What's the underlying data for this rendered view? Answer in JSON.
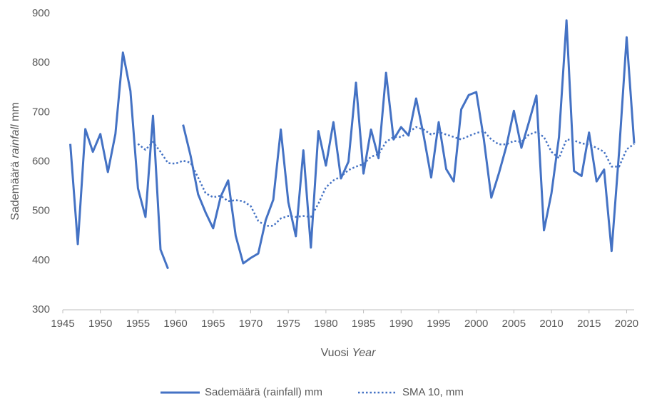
{
  "chart_data": {
    "type": "line",
    "ylabel": [
      "Sademäärä",
      "rainfall",
      "mm"
    ],
    "xlabel": [
      "Vuosi",
      "Year"
    ],
    "x": [
      1946,
      1947,
      1948,
      1949,
      1950,
      1951,
      1952,
      1953,
      1954,
      1955,
      1956,
      1957,
      1958,
      1959,
      1960,
      1961,
      1962,
      1963,
      1964,
      1965,
      1966,
      1967,
      1968,
      1969,
      1970,
      1971,
      1972,
      1973,
      1974,
      1975,
      1976,
      1977,
      1978,
      1979,
      1980,
      1981,
      1982,
      1983,
      1984,
      1985,
      1986,
      1987,
      1988,
      1989,
      1990,
      1991,
      1992,
      1993,
      1994,
      1995,
      1996,
      1997,
      1998,
      1999,
      2000,
      2001,
      2002,
      2003,
      2004,
      2005,
      2006,
      2007,
      2008,
      2009,
      2010,
      2011,
      2012,
      2013,
      2014,
      2015,
      2016,
      2017,
      2018,
      2019,
      2020,
      2021
    ],
    "series": [
      {
        "name": "Sademäärä (rainfall) mm",
        "color": "#4472c4",
        "dash": "solid",
        "values": [
          636,
          433,
          666,
          620,
          656,
          579,
          656,
          821,
          743,
          546,
          488,
          693,
          422,
          383,
          null,
          675,
          612,
          534,
          497,
          465,
          529,
          562,
          450,
          394,
          405,
          414,
          482,
          523,
          665,
          518,
          449,
          623,
          426,
          662,
          592,
          680,
          566,
          600,
          760,
          576,
          665,
          607,
          780,
          645,
          670,
          653,
          728,
          653,
          568,
          680,
          585,
          560,
          706,
          735,
          741,
          646,
          527,
          576,
          631,
          703,
          628,
          680,
          734,
          461,
          536,
          650,
          886,
          581,
          571,
          659,
          560,
          584,
          419,
          621,
          852,
          637
        ]
      },
      {
        "name": "SMA 10, mm",
        "color": "#4472c4",
        "dash": "dotted",
        "values": [
          null,
          null,
          null,
          null,
          null,
          null,
          null,
          null,
          null,
          636,
          624,
          640,
          620,
          597,
          596,
          602,
          598,
          568,
          536,
          528,
          531,
          520,
          522,
          520,
          510,
          480,
          470,
          470,
          485,
          490,
          488,
          490,
          488,
          515,
          548,
          562,
          570,
          583,
          590,
          595,
          610,
          615,
          640,
          650,
          650,
          660,
          670,
          665,
          655,
          660,
          655,
          650,
          645,
          652,
          658,
          662,
          645,
          635,
          635,
          642,
          640,
          655,
          660,
          650,
          620,
          607,
          645,
          643,
          637,
          635,
          628,
          620,
          590,
          590,
          625,
          636
        ]
      }
    ],
    "xlim": [
      1945,
      2021
    ],
    "xticks": [
      1945,
      1950,
      1955,
      1960,
      1965,
      1970,
      1975,
      1980,
      1985,
      1990,
      1995,
      2000,
      2005,
      2010,
      2015,
      2020
    ],
    "ylim": [
      300,
      900
    ],
    "yticks": [
      300,
      400,
      500,
      600,
      700,
      800,
      900
    ],
    "grid": false,
    "legend": "bottom"
  }
}
